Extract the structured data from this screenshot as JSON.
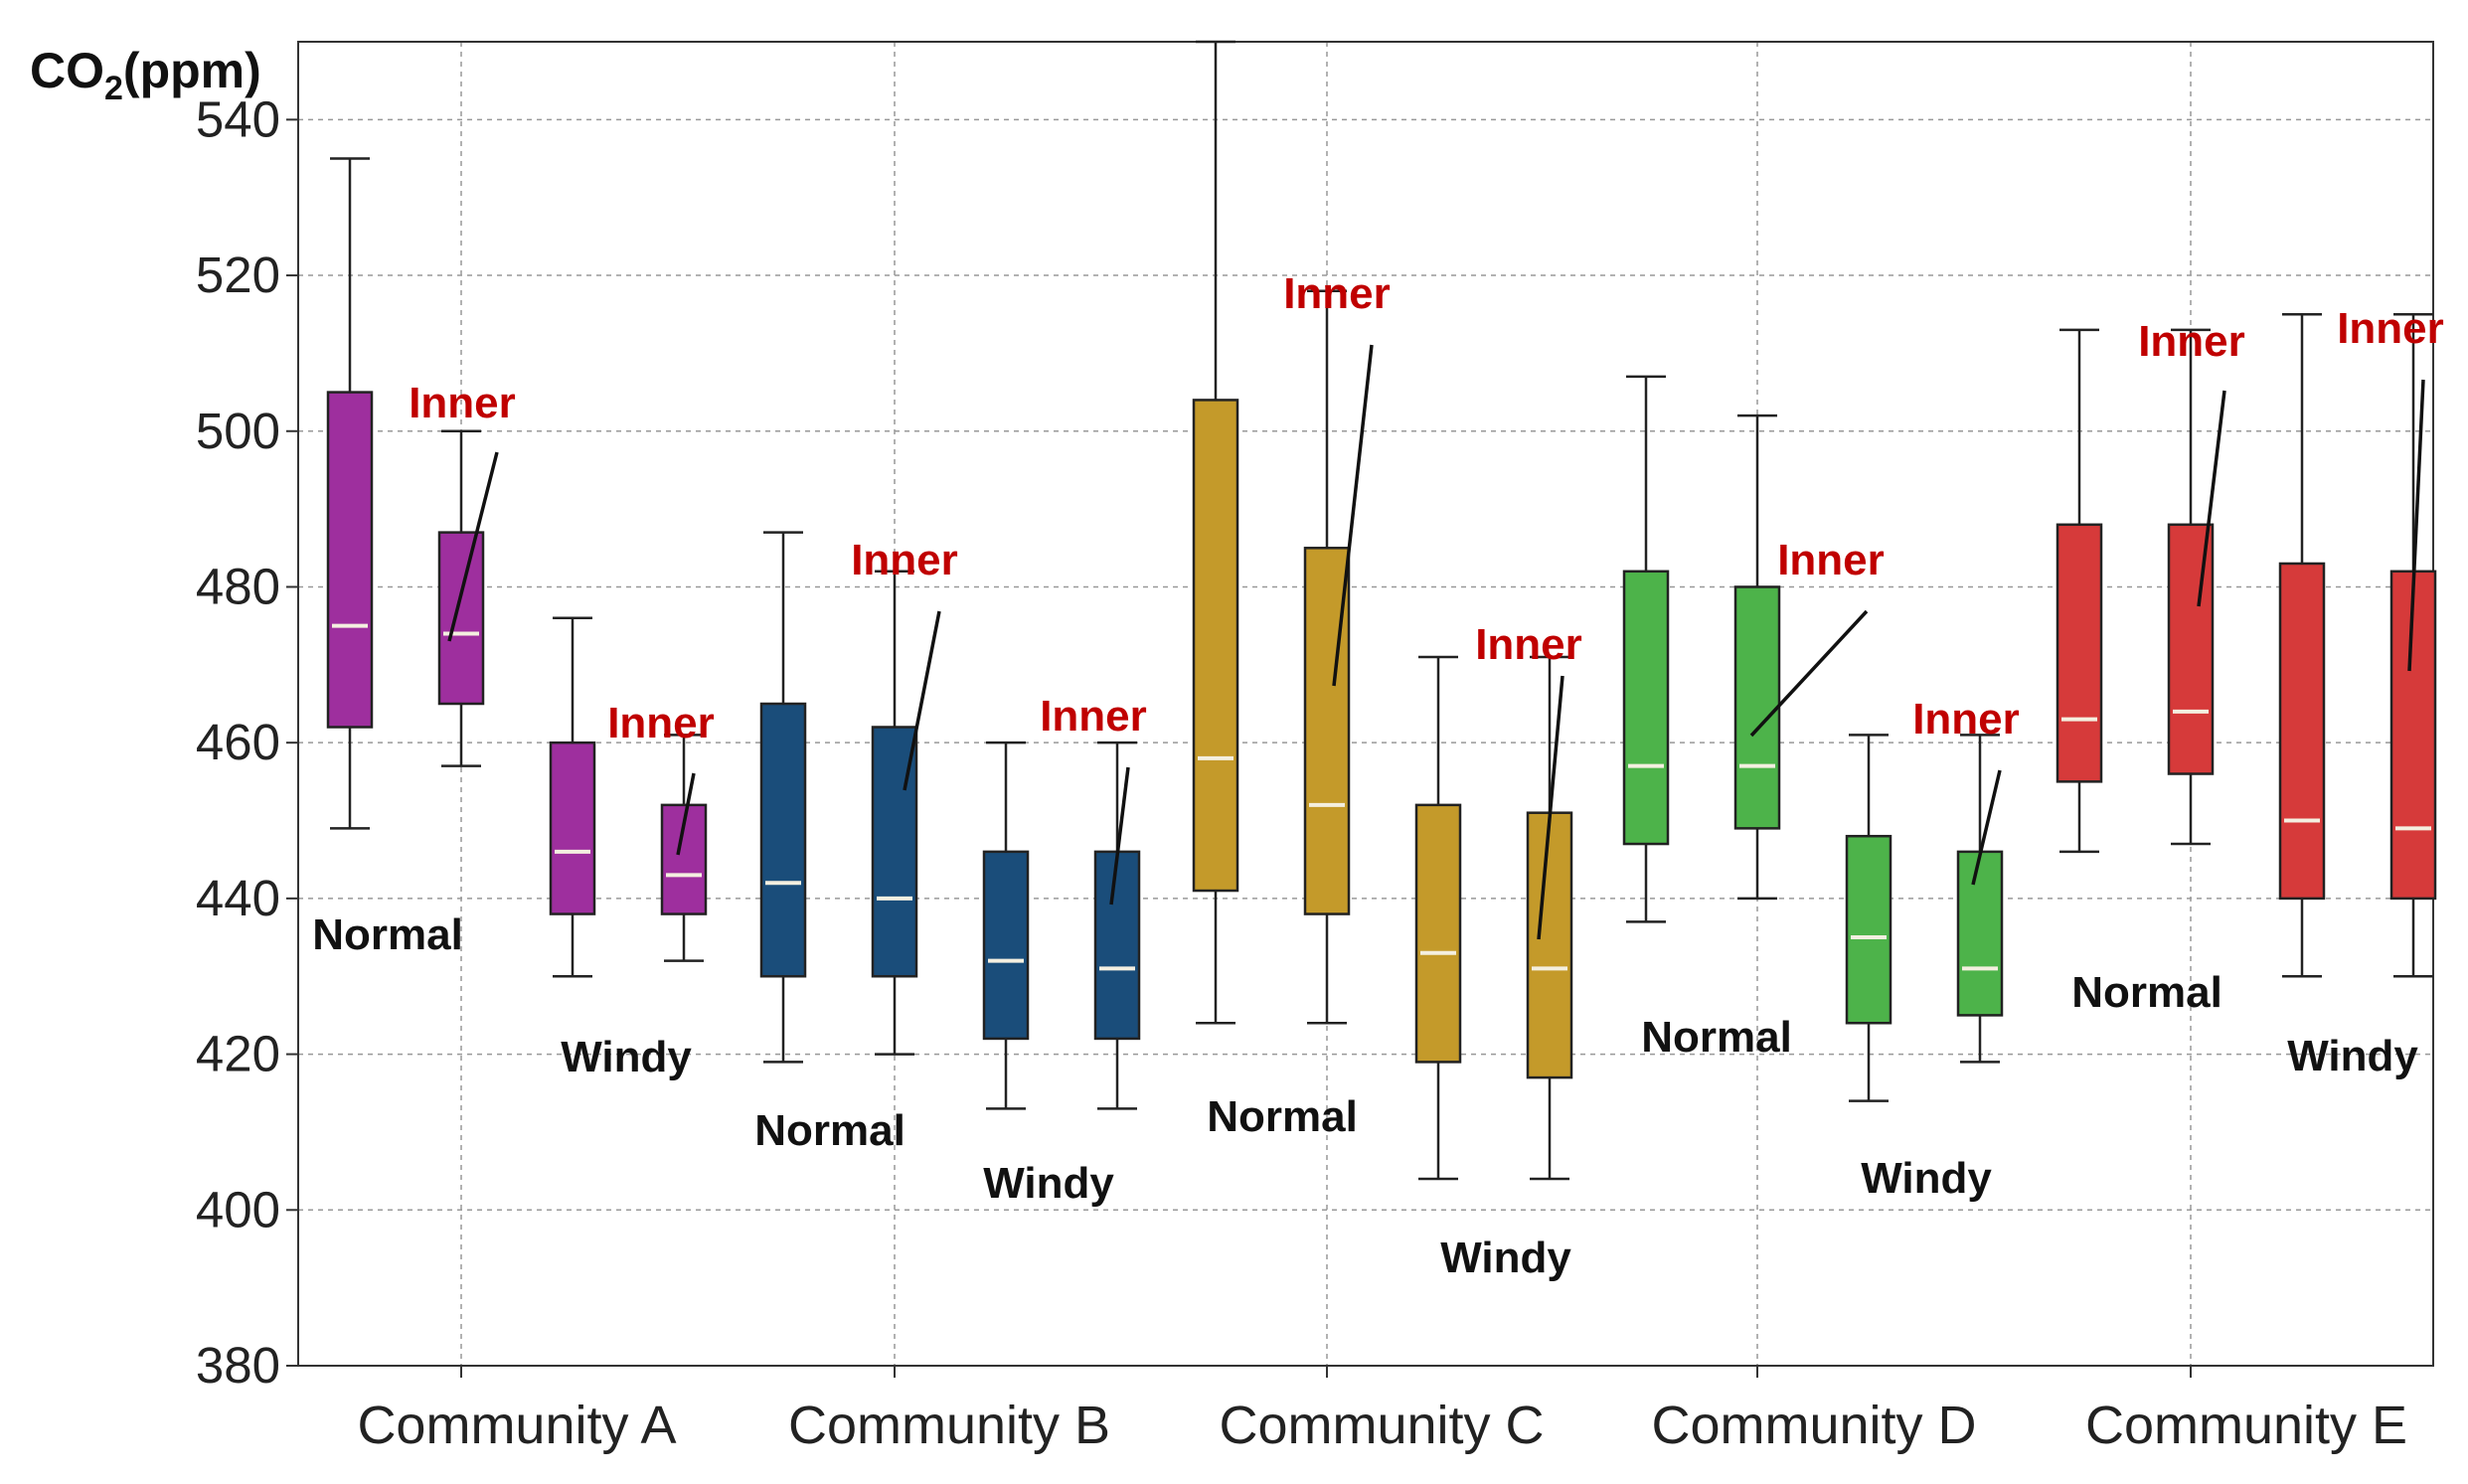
{
  "chart_data": {
    "type": "box",
    "ylabel": "CO2(ppm)",
    "ylabel_main": "CO",
    "ylabel_sub": "2",
    "ylabel_unit": "(ppm)",
    "ylim": [
      380,
      550
    ],
    "yticks": [
      380,
      400,
      420,
      440,
      460,
      480,
      500,
      520,
      540
    ],
    "grid": true,
    "categories": [
      "Community A",
      "Community B",
      "Community C",
      "Community D",
      "Community E"
    ],
    "colors": [
      "#9e2f9e",
      "#1a4d7a",
      "#c49a2a",
      "#4db34a",
      "#d63a3a"
    ],
    "groups": [
      {
        "category": "Community A",
        "boxes": [
          {
            "min": 449,
            "q1": 462,
            "median": 475,
            "q3": 505,
            "max": 535
          },
          {
            "min": 457,
            "q1": 465,
            "median": 474,
            "q3": 487,
            "max": 500
          },
          {
            "min": 430,
            "q1": 438,
            "median": 446,
            "q3": 460,
            "max": 476
          },
          {
            "min": 432,
            "q1": 438,
            "median": 443,
            "q3": 452,
            "max": 461
          }
        ]
      },
      {
        "category": "Community B",
        "boxes": [
          {
            "min": 419,
            "q1": 430,
            "median": 442,
            "q3": 465,
            "max": 487
          },
          {
            "min": 420,
            "q1": 430,
            "median": 440,
            "q3": 462,
            "max": 482
          },
          {
            "min": 413,
            "q1": 422,
            "median": 432,
            "q3": 446,
            "max": 460
          },
          {
            "min": 413,
            "q1": 422,
            "median": 431,
            "q3": 446,
            "max": 460
          }
        ]
      },
      {
        "category": "Community C",
        "boxes": [
          {
            "min": 424,
            "q1": 441,
            "median": 458,
            "q3": 504,
            "max": 550
          },
          {
            "min": 424,
            "q1": 438,
            "median": 452,
            "q3": 485,
            "max": 518
          },
          {
            "min": 404,
            "q1": 419,
            "median": 433,
            "q3": 452,
            "max": 471
          },
          {
            "min": 404,
            "q1": 417,
            "median": 431,
            "q3": 451,
            "max": 471
          }
        ]
      },
      {
        "category": "Community D",
        "boxes": [
          {
            "min": 437,
            "q1": 447,
            "median": 457,
            "q3": 482,
            "max": 507
          },
          {
            "min": 440,
            "q1": 449,
            "median": 457,
            "q3": 480,
            "max": 502
          },
          {
            "min": 414,
            "q1": 424,
            "median": 435,
            "q3": 448,
            "max": 461
          },
          {
            "min": 419,
            "q1": 425,
            "median": 431,
            "q3": 446,
            "max": 461
          }
        ]
      },
      {
        "category": "Community E",
        "boxes": [
          {
            "min": 446,
            "q1": 455,
            "median": 463,
            "q3": 488,
            "max": 513
          },
          {
            "min": 447,
            "q1": 456,
            "median": 464,
            "q3": 488,
            "max": 513
          },
          {
            "min": 430,
            "q1": 440,
            "median": 450,
            "q3": 483,
            "max": 515
          },
          {
            "min": 430,
            "q1": 440,
            "median": 449,
            "q3": 482,
            "max": 515
          }
        ]
      }
    ],
    "annotations": [
      {
        "text": "Normal",
        "group": 0
      },
      {
        "text": "Windy",
        "group": 0
      },
      {
        "text": "Inner",
        "group": 0,
        "box": 1
      },
      {
        "text": "Inner",
        "group": 0,
        "box": 3
      },
      {
        "text": "Normal",
        "group": 1
      },
      {
        "text": "Windy",
        "group": 1
      },
      {
        "text": "Inner",
        "group": 1,
        "box": 1
      },
      {
        "text": "Inner",
        "group": 1,
        "box": 3
      },
      {
        "text": "Normal",
        "group": 2
      },
      {
        "text": "Windy",
        "group": 2
      },
      {
        "text": "Inner",
        "group": 2,
        "box": 1
      },
      {
        "text": "Inner",
        "group": 2,
        "box": 3
      },
      {
        "text": "Normal",
        "group": 3
      },
      {
        "text": "Windy",
        "group": 3
      },
      {
        "text": "Inner",
        "group": 3,
        "box": 1
      },
      {
        "text": "Inner",
        "group": 3,
        "box": 3
      },
      {
        "text": "Normal",
        "group": 4
      },
      {
        "text": "Windy",
        "group": 4
      },
      {
        "text": "Inner",
        "group": 4,
        "box": 1
      },
      {
        "text": "Inner",
        "group": 4,
        "box": 3
      }
    ]
  }
}
